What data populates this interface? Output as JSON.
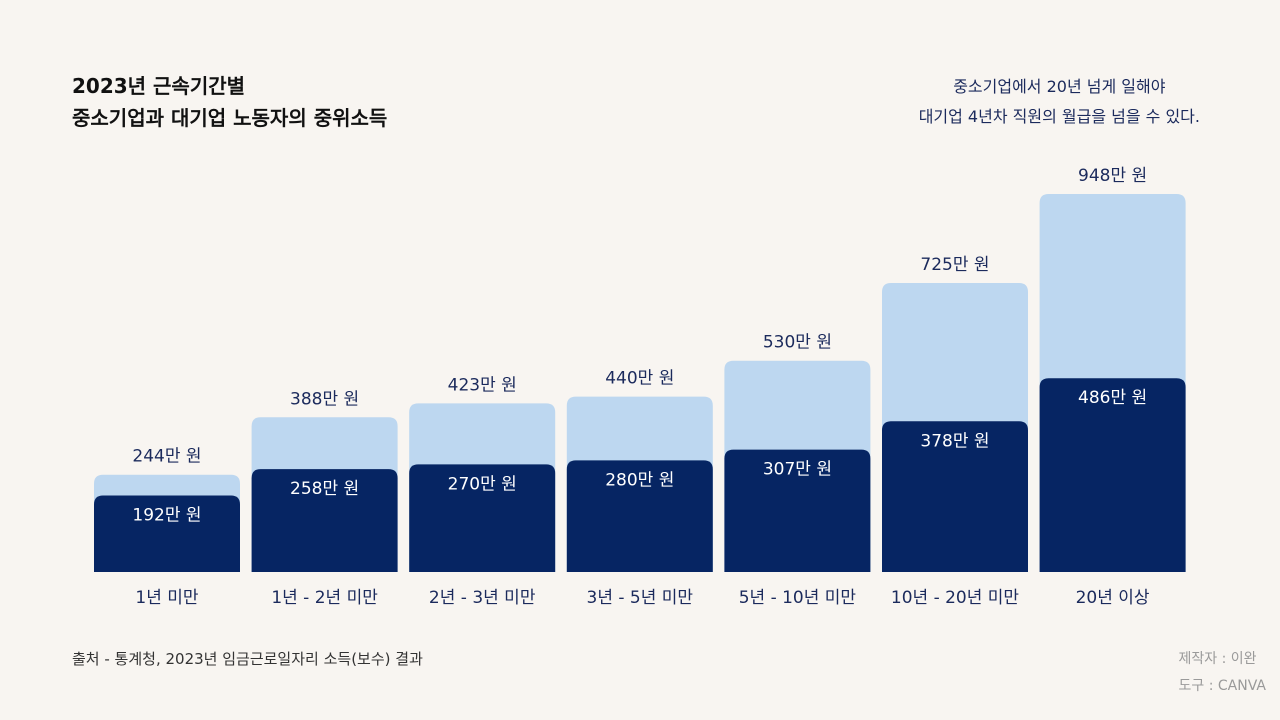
{
  "title": {
    "line1": "2023년 근속기간별",
    "line2": "중소기업과 대기업 노동자의 중위소득"
  },
  "note": {
    "line1": "중소기업에서 20년 넘게 일해야",
    "line2": "대기업 4년차 직원의 월급을 넘을 수 있다."
  },
  "source": "출처 - 통계청, 2023년 임금근로일자리 소득(보수) 결과",
  "credits": {
    "maker": "제작자 : 이완",
    "tool": "도구 : CANVA"
  },
  "colors": {
    "large_firm": "#bdd7f0",
    "small_firm": "#062563",
    "background": "#f8f5f1",
    "text": "#1b2a5c"
  },
  "chart_data": {
    "type": "bar",
    "categories": [
      "1년 미만",
      "1년 - 2년 미만",
      "2년  - 3년 미만",
      "3년 - 5년 미만",
      "5년 - 10년 미만",
      "10년 - 20년 미만",
      "20년 이상"
    ],
    "series": [
      {
        "values": [
          244,
          388,
          423,
          440,
          530,
          725,
          948
        ],
        "labels": [
          "244만 원",
          "388만 원",
          "423만 원",
          "440만 원",
          "530만 원",
          "725만 원",
          "948만 원"
        ]
      },
      {
        "values": [
          192,
          258,
          270,
          280,
          307,
          378,
          486
        ],
        "labels": [
          "192만 원",
          "258만 원",
          "270만 원",
          "280만 원",
          "307만 원",
          "378만 원",
          "486만 원"
        ]
      }
    ],
    "unit": "만 원",
    "overlapped": true,
    "axes_visible": false,
    "grid": false
  }
}
